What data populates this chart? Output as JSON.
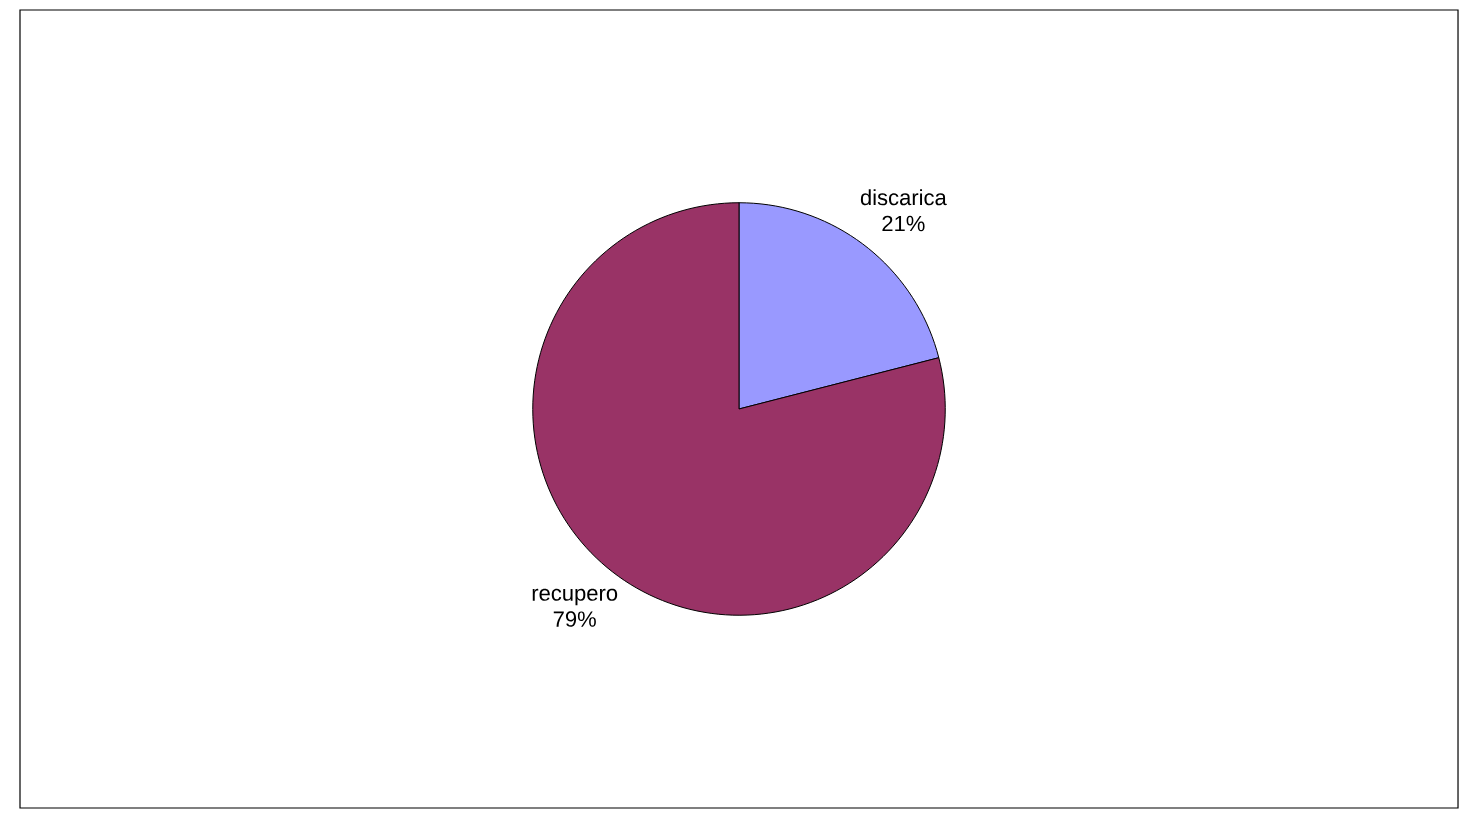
{
  "chart_data": {
    "type": "pie",
    "categories": [
      "discarica",
      "recupero"
    ],
    "values": [
      21,
      79
    ],
    "colors": [
      "#9999ff",
      "#993366"
    ],
    "value_labels": [
      "21%",
      "79%"
    ]
  }
}
